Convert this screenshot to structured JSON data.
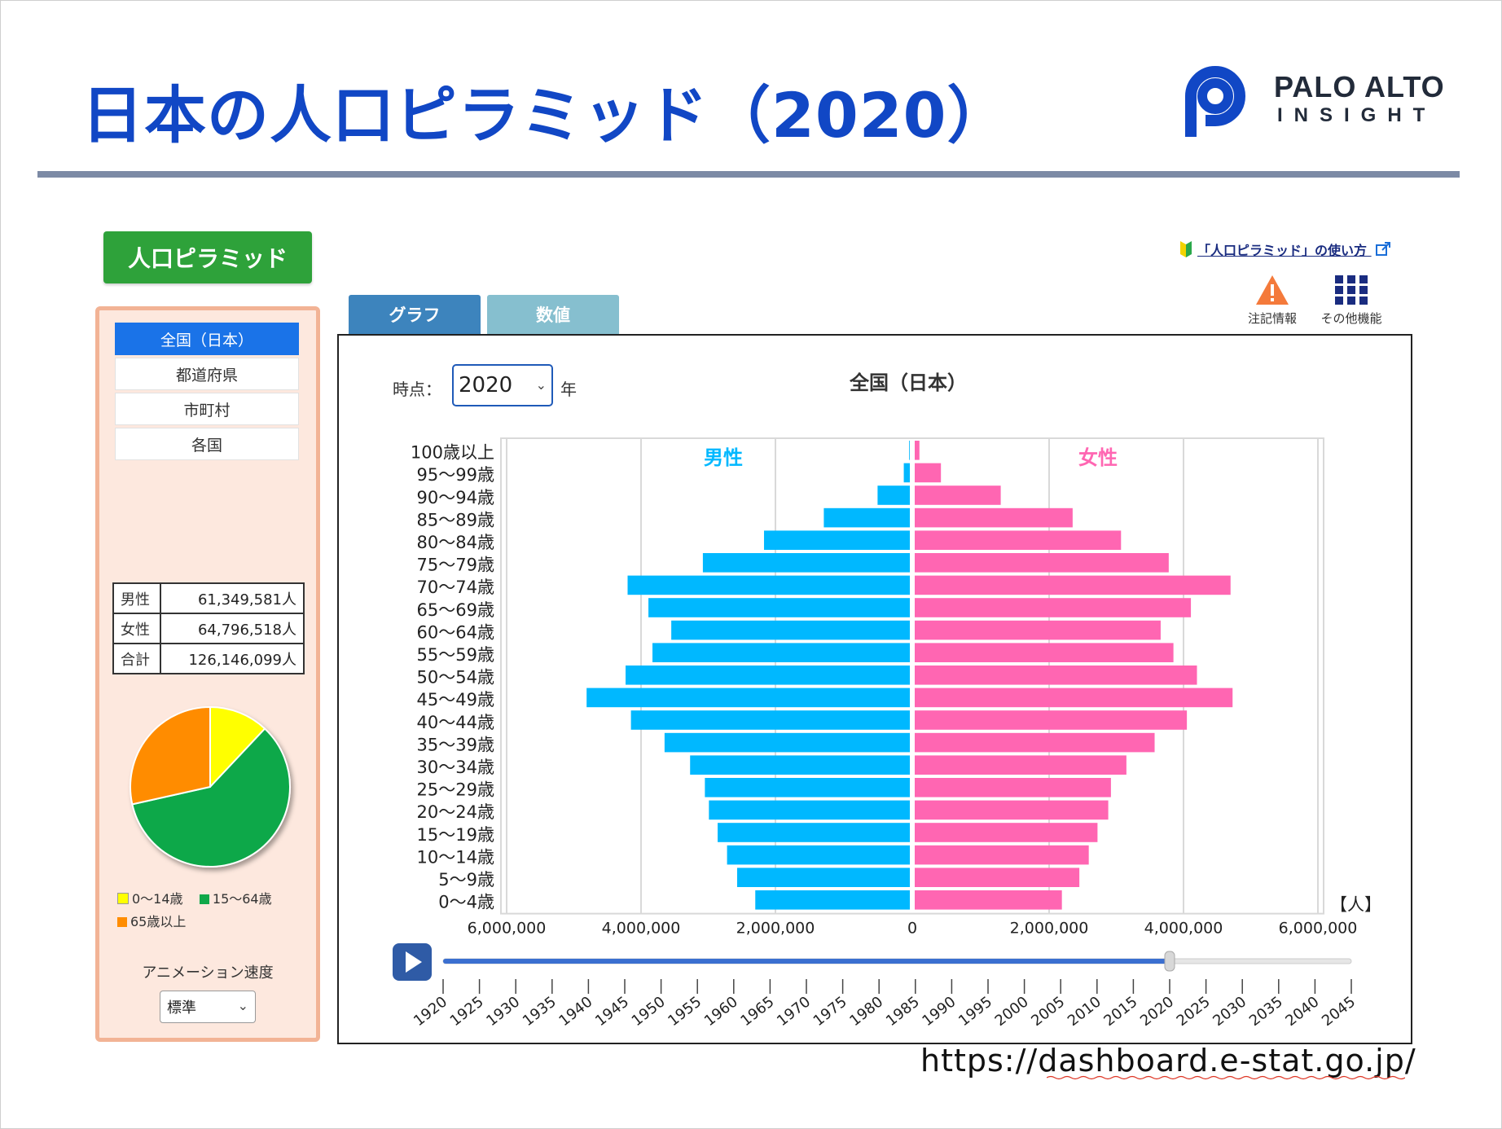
{
  "header": {
    "title": "日本の人口ピラミッド（2020）"
  },
  "logo": {
    "line1": "PALO ALTO",
    "line2": "INSIGHT",
    "color": "#1147c5"
  },
  "left_panel": {
    "button_label": "人口ピラミッド",
    "regions": [
      {
        "label": "全国（日本）",
        "active": true
      },
      {
        "label": "都道府県",
        "active": false
      },
      {
        "label": "市町村",
        "active": false
      },
      {
        "label": "各国",
        "active": false
      }
    ],
    "stats": [
      {
        "key": "男性",
        "value": "61,349,581人"
      },
      {
        "key": "女性",
        "value": "64,796,518人"
      },
      {
        "key": "合計",
        "value": "126,146,099人"
      }
    ],
    "pie": {
      "slices": [
        {
          "label": "0〜14歳",
          "value": 12.0,
          "color": "#ffff00"
        },
        {
          "label": "15〜64歳",
          "value": 59.5,
          "color": "#10a84a"
        },
        {
          "label": "65歳以上",
          "value": 28.5,
          "color": "#ff8c00"
        }
      ]
    },
    "animation_label": "アニメーション速度",
    "animation_speed": "標準"
  },
  "tabs": [
    {
      "label": "グラフ",
      "active": true
    },
    {
      "label": "数値",
      "active": false
    }
  ],
  "toolbar": {
    "help_link": "「人口ピラミッド」の使い方",
    "warn_label": "注記情報",
    "more_label": "その他機能"
  },
  "controls": {
    "time_label": "時点：",
    "year": "2020",
    "year_unit": "年"
  },
  "chart_title": "全国（日本）",
  "chart_data": {
    "type": "bar",
    "orientation": "horizontal-pyramid",
    "male_label": "男性",
    "female_label": "女性",
    "unit_label": "【人】",
    "male_color": "#00b8ff",
    "female_color": "#ff66b2",
    "categories": [
      "0〜4歳",
      "5〜9歳",
      "10〜14歳",
      "15〜19歳",
      "20〜24歳",
      "25〜29歳",
      "30〜34歳",
      "35〜39歳",
      "40〜44歳",
      "45〜49歳",
      "50〜54歳",
      "55〜59歳",
      "60〜64歳",
      "65〜69歳",
      "70〜74歳",
      "75〜79歳",
      "80〜84歳",
      "85〜89歳",
      "90〜94歳",
      "95〜99歳",
      "100歳以上"
    ],
    "series": [
      {
        "name": "男性",
        "values": [
          2300000,
          2570000,
          2720000,
          2860000,
          2990000,
          3050000,
          3270000,
          3650000,
          4150000,
          4810000,
          4230000,
          3830000,
          3550000,
          3890000,
          4200000,
          3080000,
          2170000,
          1280000,
          480000,
          90000,
          10000
        ]
      },
      {
        "name": "女性",
        "values": [
          2190000,
          2450000,
          2590000,
          2720000,
          2880000,
          2920000,
          3150000,
          3570000,
          4050000,
          4730000,
          4200000,
          3850000,
          3660000,
          4110000,
          4700000,
          3780000,
          3070000,
          2350000,
          1280000,
          390000,
          70000
        ]
      }
    ],
    "x_ticks": [
      "6,000,000",
      "4,000,000",
      "2,000,000",
      "0",
      "2,000,000",
      "4,000,000",
      "6,000,000"
    ],
    "xlim": [
      -6000000,
      6000000
    ]
  },
  "timeline": {
    "years": [
      "1920",
      "1925",
      "1930",
      "1935",
      "1940",
      "1945",
      "1950",
      "1955",
      "1960",
      "1965",
      "1970",
      "1975",
      "1980",
      "1985",
      "1990",
      "1995",
      "2000",
      "2005",
      "2010",
      "2015",
      "2020",
      "2025",
      "2030",
      "2035",
      "2040",
      "2045"
    ],
    "current": "2020"
  },
  "source_url": "https://dashboard.e-stat.go.jp/"
}
